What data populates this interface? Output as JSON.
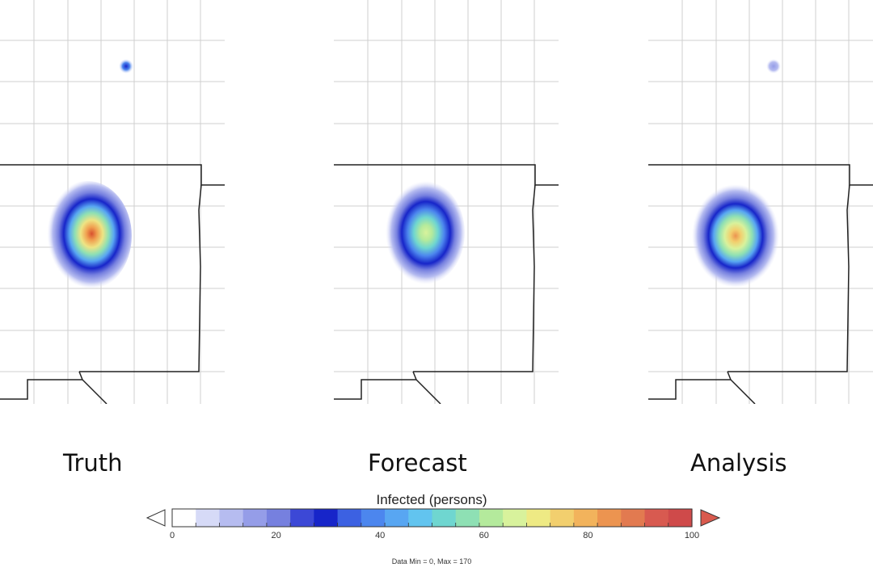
{
  "panels": [
    {
      "label": "Truth",
      "key": "truth"
    },
    {
      "label": "Forecast",
      "key": "forecast"
    },
    {
      "label": "Analysis",
      "key": "analysis"
    }
  ],
  "colorbar": {
    "title": "Infected (persons)",
    "min": 0,
    "max": 100,
    "tick_labels": [
      "0",
      "20",
      "40",
      "60",
      "80",
      "100"
    ],
    "colors": [
      "#ffffff",
      "#d6daf7",
      "#b6bcf0",
      "#959de8",
      "#7680df",
      "#3c48d6",
      "#1725c9",
      "#3c61e2",
      "#4c86ee",
      "#58a6f2",
      "#62c4ef",
      "#6fd6d0",
      "#8ee0b4",
      "#b4ea9c",
      "#d8f29c",
      "#eeea84",
      "#f2cf6e",
      "#f2b35c",
      "#ec9450",
      "#e27a50",
      "#d85a50",
      "#cf4a4a"
    ],
    "under_color": "#ffffff",
    "over_color": "#d95a4e",
    "note": "Data Min = 0, Max = 170"
  }
}
